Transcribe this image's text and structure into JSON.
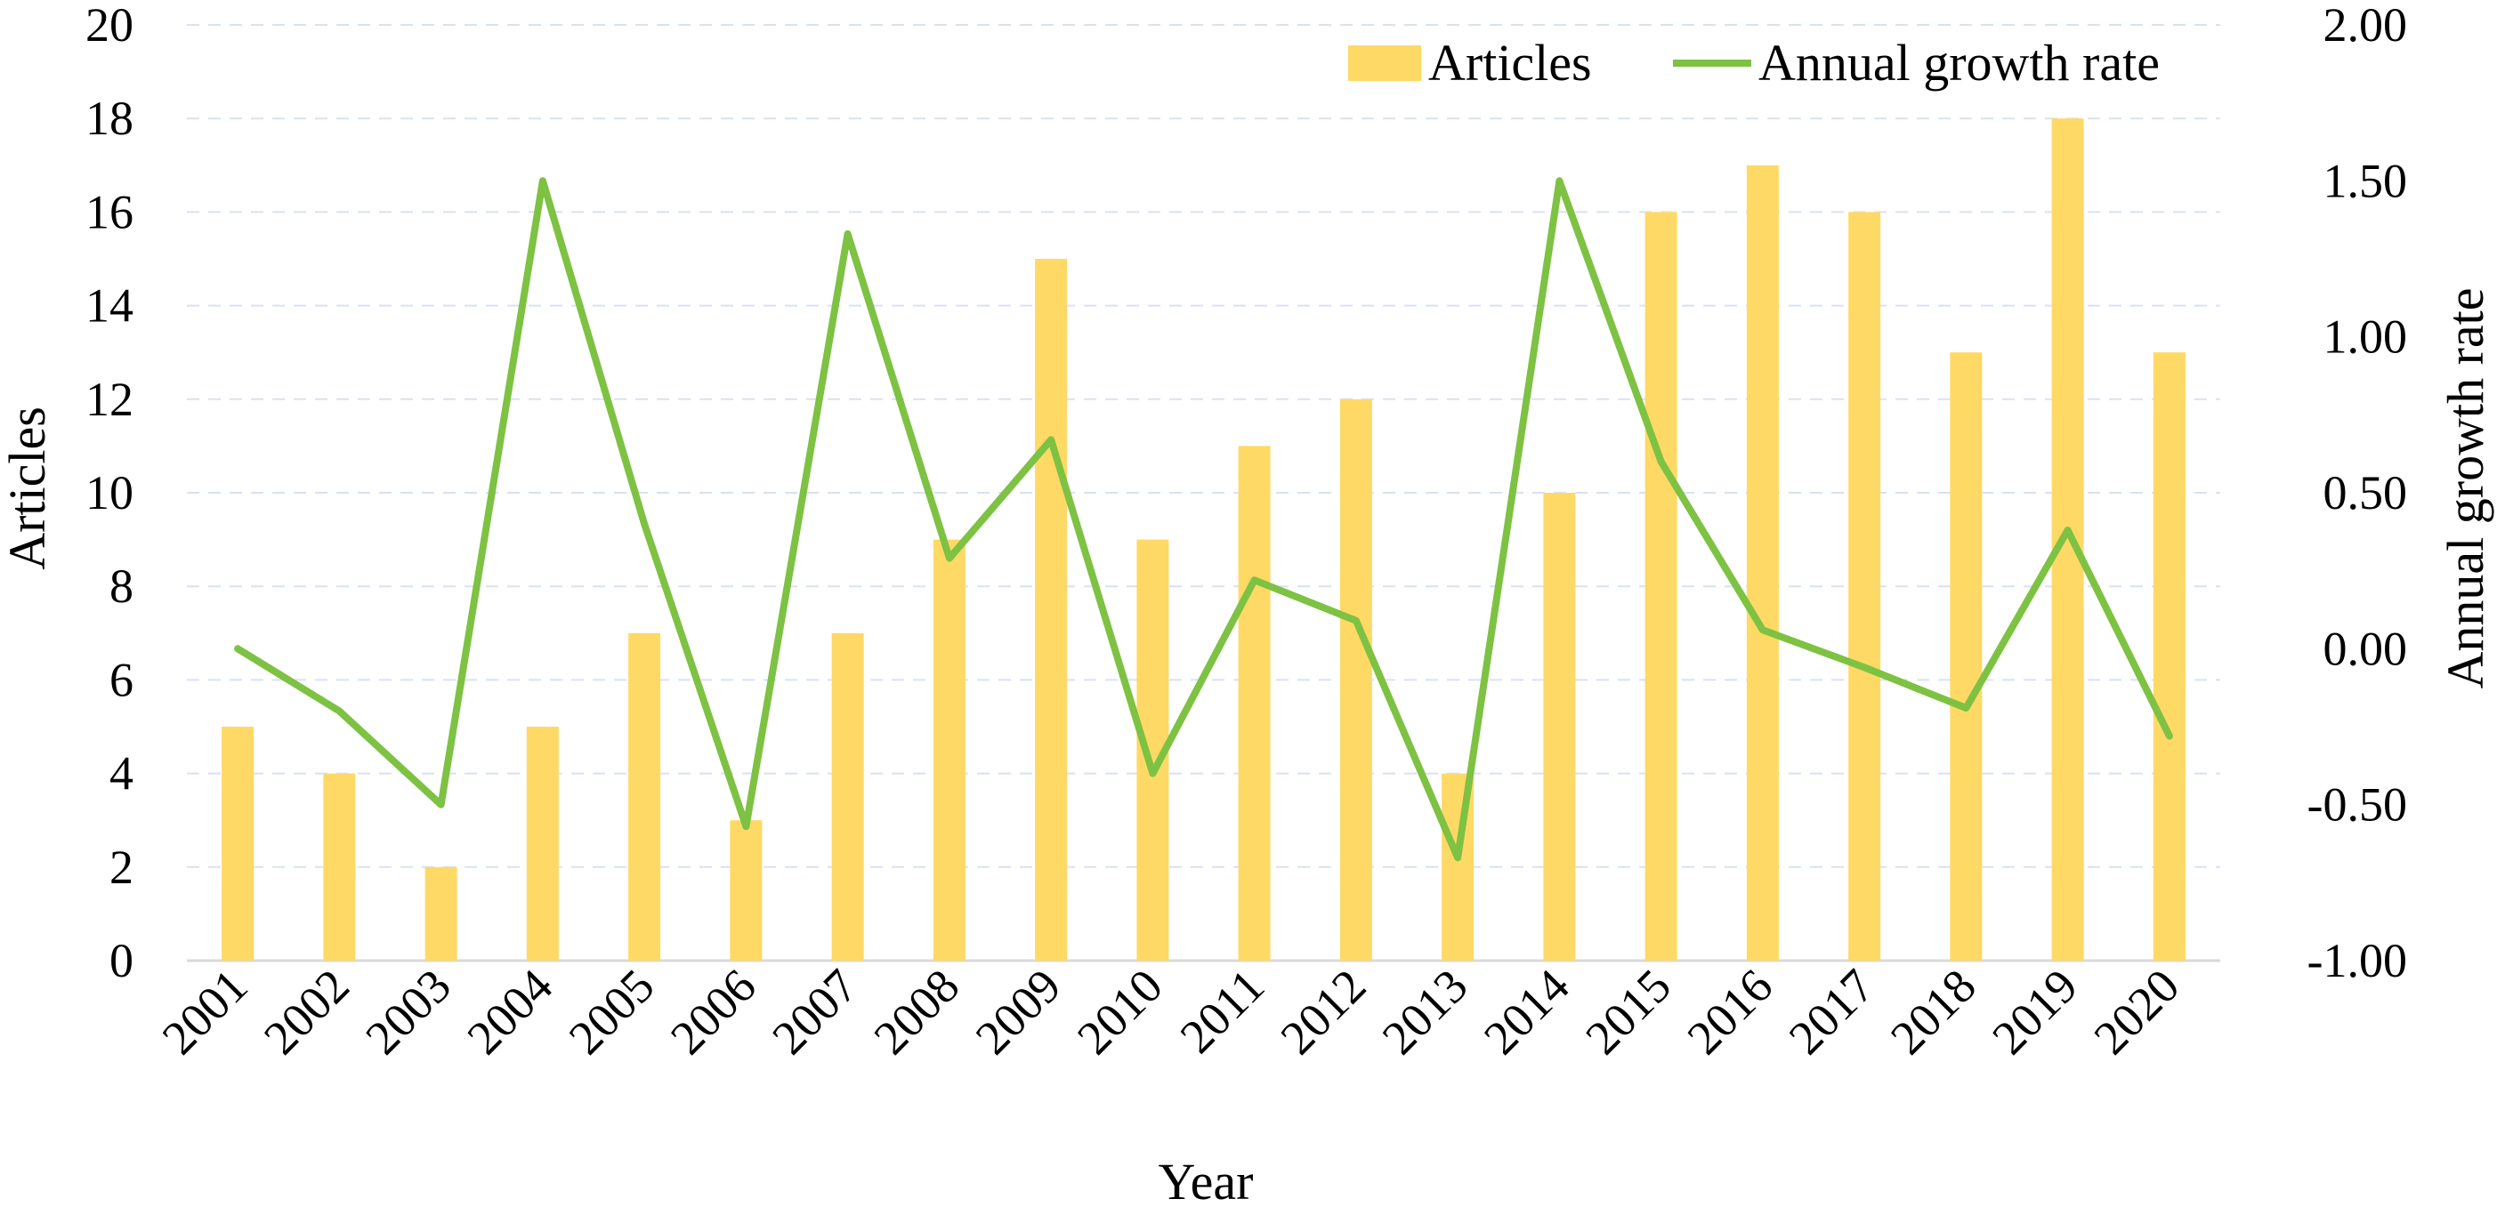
{
  "chart_data": {
    "type": "bar",
    "categories": [
      "2001",
      "2002",
      "2003",
      "2004",
      "2005",
      "2006",
      "2007",
      "2008",
      "2009",
      "2010",
      "2011",
      "2012",
      "2013",
      "2014",
      "2015",
      "2016",
      "2017",
      "2018",
      "2019",
      "2020"
    ],
    "series": [
      {
        "name": "Articles",
        "type": "bar",
        "axis": "left",
        "color": "#FFD966",
        "values": [
          5,
          4,
          2,
          5,
          7,
          3,
          7,
          9,
          15,
          9,
          11,
          12,
          4,
          10,
          16,
          17,
          16,
          13,
          18,
          13
        ]
      },
      {
        "name": "Annual growth rate",
        "type": "line",
        "axis": "right",
        "color": "#7DC242",
        "values": [
          0.0,
          -0.2,
          -0.5,
          1.5,
          0.4,
          -0.57,
          1.33,
          0.29,
          0.67,
          -0.4,
          0.22,
          0.09,
          -0.67,
          1.5,
          0.6,
          0.06,
          -0.06,
          -0.19,
          0.38,
          -0.28
        ]
      }
    ],
    "xlabel": "Year",
    "ylabel": "Articles",
    "y2label": "Annual growth rate",
    "ylim": [
      0,
      20
    ],
    "y2lim": [
      -1.0,
      2.0
    ],
    "yticks": [
      "0",
      "2",
      "4",
      "6",
      "8",
      "10",
      "12",
      "14",
      "16",
      "18",
      "20"
    ],
    "y2ticks": [
      "-1.00",
      "-0.50",
      "0.00",
      "0.50",
      "1.00",
      "1.50",
      "2.00"
    ],
    "grid": "horizontal dashed",
    "legend_position": "top-right",
    "colors": {
      "grid": "#D9E1F2",
      "baseline": "#D9D9D9"
    }
  }
}
